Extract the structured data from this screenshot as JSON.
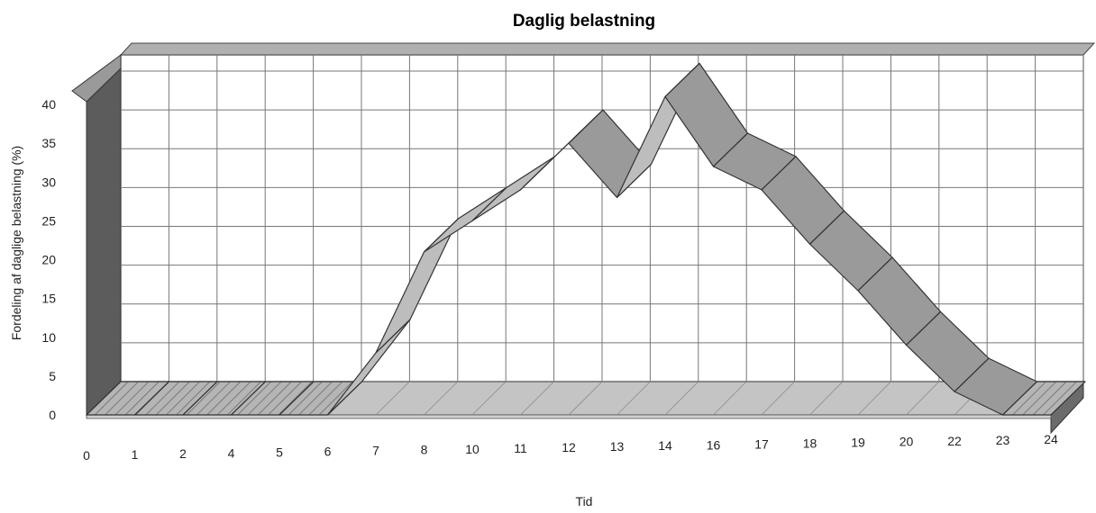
{
  "chart_data": {
    "type": "area",
    "variant": "3d-ribbon",
    "title": "Daglig belastning",
    "xlabel": "Tid",
    "ylabel": "Fordeling af daglige belastning (%)",
    "categories": [
      "0",
      "1",
      "2",
      "4",
      "5",
      "6",
      "7",
      "8",
      "10",
      "11",
      "12",
      "13",
      "14",
      "16",
      "17",
      "18",
      "19",
      "20",
      "22",
      "23",
      "24"
    ],
    "values": [
      0,
      0,
      0,
      0,
      0,
      0,
      8,
      21,
      25,
      29,
      35,
      28,
      41,
      32,
      29,
      22,
      16,
      9,
      3,
      0,
      0
    ],
    "ylim": [
      0,
      40
    ],
    "yticks": [
      0,
      5,
      10,
      15,
      20,
      25,
      30,
      35,
      40
    ],
    "grid": true,
    "legend": "none",
    "colors": {
      "ribbon_top": "#bdbdbd",
      "ribbon_front": "#9a9a9a",
      "wall": "#ffffff",
      "side_wall": "#5c5c5c",
      "floor": "#c4c4c4",
      "grid": "#777777"
    }
  }
}
